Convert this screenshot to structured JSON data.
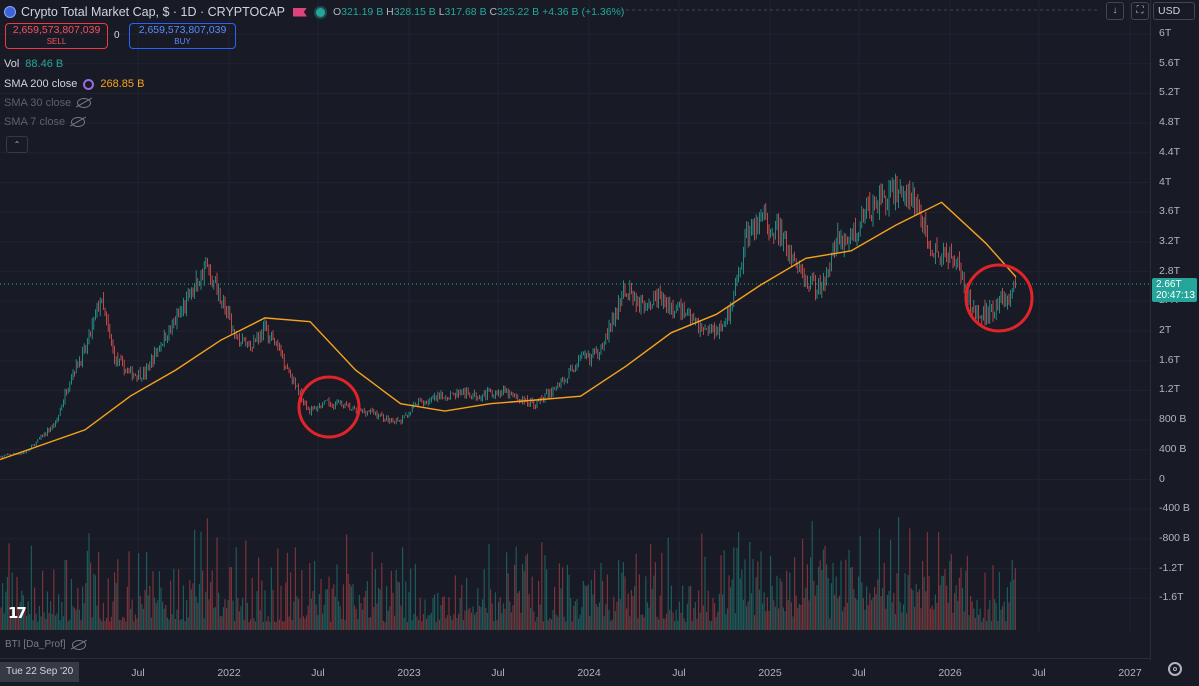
{
  "header": {
    "title": "Crypto Total Market Cap, $ · 1D · CRYPTOCAP",
    "ohlc": [
      {
        "k": "O",
        "v": "321.19 B"
      },
      {
        "k": "H",
        "v": "328.15 B"
      },
      {
        "k": "L",
        "v": "317.68 B"
      },
      {
        "k": "C",
        "v": "325.22 B"
      }
    ],
    "change": "+4.36 B (+1.36%)"
  },
  "trade": {
    "sell_price": "2,659,573,807,039",
    "sell_label": "SELL",
    "spread": "0",
    "buy_price": "2,659,573,807,039",
    "buy_label": "BUY"
  },
  "indicators": {
    "vol_label": "Vol",
    "vol_value": "88.46 B",
    "sma200_label": "SMA 200 close",
    "sma200_value": "268.85 B",
    "sma30_label": "SMA 30 close",
    "sma7_label": "SMA 7 close",
    "bti_label": "BTI [Da_Prof]"
  },
  "toolbar": {
    "currency": "USD",
    "collapse_glyph": "⌃",
    "download_glyph": "↓"
  },
  "price_label": {
    "value": "2.66T",
    "countdown": "20:47:13"
  },
  "price_axis": {
    "labels": [
      "6T",
      "5.6T",
      "5.2T",
      "4.8T",
      "4.4T",
      "4T",
      "3.6T",
      "3.2T",
      "2.8T",
      "2.4T",
      "2T",
      "1.6T",
      "1.2T",
      "800 B",
      "400 B",
      "0",
      "-400 B",
      "-800 B",
      "-1.2T",
      "-1.6T"
    ]
  },
  "time_axis": {
    "date_label": "Tue 22 Sep '20",
    "labels": [
      "Jul",
      "2022",
      "Jul",
      "2023",
      "Jul",
      "2024",
      "Jul",
      "2025",
      "Jul",
      "2026",
      "Jul",
      "2027"
    ]
  },
  "colors": {
    "background": "#181b26",
    "up": "#26a69a",
    "down": "#ef5350",
    "sma200": "#f7a21b",
    "annotation": "#e2242a"
  },
  "chart_data": {
    "type": "candlestick",
    "title": "Crypto Total Market Cap, $ · 1D · CRYPTOCAP",
    "unit": "USD",
    "x_range": [
      "2020-09-22",
      "2027-01-01"
    ],
    "ylim_price": [
      0,
      6000000000000
    ],
    "series": [
      {
        "name": "price",
        "x": [
          "2020-09",
          "2020-11",
          "2021-01",
          "2021-02",
          "2021-03",
          "2021-04",
          "2021-05",
          "2021-06",
          "2021-07",
          "2021-08",
          "2021-09",
          "2021-10",
          "2021-11",
          "2021-12",
          "2022-01",
          "2022-02",
          "2022-03",
          "2022-04",
          "2022-05",
          "2022-06",
          "2022-07",
          "2022-08",
          "2022-09",
          "2022-10",
          "2022-11",
          "2022-12",
          "2023-01",
          "2023-02",
          "2023-03",
          "2023-04",
          "2023-05",
          "2023-06",
          "2023-07",
          "2023-08",
          "2023-09",
          "2023-10",
          "2023-11",
          "2023-12",
          "2024-01",
          "2024-02",
          "2024-03",
          "2024-04",
          "2024-05",
          "2024-06",
          "2024-07",
          "2024-08",
          "2024-09",
          "2024-10",
          "2024-11",
          "2024-12",
          "2025-01",
          "2025-02",
          "2025-03",
          "2025-04",
          "2025-05",
          "2025-06",
          "2025-07",
          "2025-08",
          "2025-09",
          "2025-10",
          "2025-11",
          "2025-12",
          "2026-01",
          "2026-02",
          "2026-03",
          "2026-04",
          "2026-05"
        ],
        "values": [
          340,
          400,
          800,
          1450,
          1750,
          2450,
          1650,
          1450,
          1450,
          1850,
          2150,
          2500,
          2900,
          2500,
          1900,
          1850,
          2050,
          1750,
          1300,
          950,
          1050,
          1050,
          950,
          950,
          850,
          800,
          1050,
          1100,
          1150,
          1200,
          1150,
          1200,
          1200,
          1100,
          1050,
          1200,
          1400,
          1650,
          1700,
          2100,
          2600,
          2400,
          2500,
          2300,
          2300,
          2050,
          2050,
          2300,
          3300,
          3500,
          3400,
          3000,
          2700,
          2600,
          3200,
          3300,
          3600,
          3800,
          3900,
          3800,
          3300,
          3000,
          3000,
          2300,
          2250,
          2400,
          2660
        ],
        "unit_note": "billions USD"
      },
      {
        "name": "SMA 200 close",
        "x": [
          "2020-09",
          "2021-03",
          "2021-06",
          "2021-09",
          "2021-12",
          "2022-03",
          "2022-06",
          "2022-09",
          "2022-12",
          "2023-03",
          "2023-06",
          "2023-09",
          "2023-12",
          "2024-03",
          "2024-06",
          "2024-09",
          "2024-12",
          "2025-03",
          "2025-06",
          "2025-09",
          "2025-12",
          "2026-03",
          "2026-05"
        ],
        "values": [
          300,
          700,
          1150,
          1500,
          1900,
          2200,
          2150,
          1500,
          1050,
          950,
          1050,
          1100,
          1150,
          1550,
          2000,
          2250,
          2650,
          3000,
          3100,
          3450,
          3750,
          3200,
          2750
        ],
        "unit_note": "billions USD"
      }
    ],
    "annotations": [
      {
        "type": "circle",
        "around": "2022-06 to 2022-10 low"
      },
      {
        "type": "circle",
        "around": "2026-02 to 2026-05 low"
      }
    ]
  }
}
